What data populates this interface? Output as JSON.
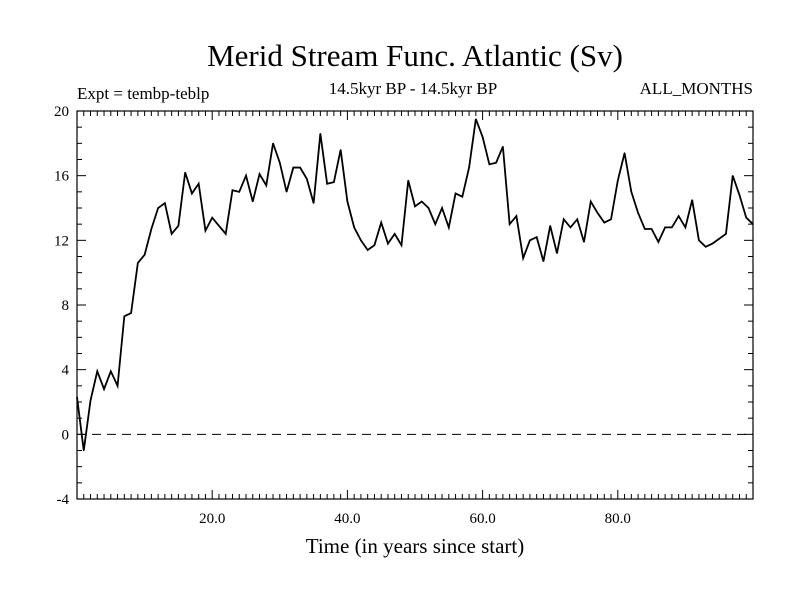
{
  "chart_data": {
    "type": "line",
    "title": "Merid Stream Func. Atlantic (Sv)",
    "subtitle_left": "Expt = tembp-teblp",
    "subtitle_center": "14.5kyr BP - 14.5kyr BP",
    "subtitle_right": "ALL_MONTHS",
    "xlabel": "Time (in years since start)",
    "ylabel": "",
    "xlim": [
      0,
      100
    ],
    "ylim": [
      -4,
      20
    ],
    "x_ticks": [
      20,
      40,
      60,
      80
    ],
    "x_tick_labels": [
      "20.0",
      "40.0",
      "60.0",
      "80.0"
    ],
    "y_ticks": [
      -4,
      0,
      4,
      8,
      12,
      16,
      20
    ],
    "y_tick_labels": [
      "-4",
      "0",
      "4",
      "8",
      "12",
      "16",
      "20"
    ],
    "zero_line": true,
    "grid": false,
    "series": [
      {
        "name": "Merid Stream Func. Atlantic",
        "color": "#000000",
        "x": [
          0,
          1,
          2,
          3,
          4,
          5,
          6,
          7,
          8,
          9,
          10,
          11,
          12,
          13,
          14,
          15,
          16,
          17,
          18,
          19,
          20,
          21,
          22,
          23,
          24,
          25,
          26,
          27,
          28,
          29,
          30,
          31,
          32,
          33,
          34,
          35,
          36,
          37,
          38,
          39,
          40,
          41,
          42,
          43,
          44,
          45,
          46,
          47,
          48,
          49,
          50,
          51,
          52,
          53,
          54,
          55,
          56,
          57,
          58,
          59,
          60,
          61,
          62,
          63,
          64,
          65,
          66,
          67,
          68,
          69,
          70,
          71,
          72,
          73,
          74,
          75,
          76,
          77,
          78,
          79,
          80,
          81,
          82,
          83,
          84,
          85,
          86,
          87,
          88,
          89,
          90,
          91,
          92,
          93,
          94,
          95,
          96,
          97,
          98,
          99,
          100
        ],
        "values": [
          2.3,
          -1.0,
          2.1,
          3.9,
          2.8,
          3.9,
          3.0,
          7.3,
          7.5,
          10.6,
          11.1,
          12.7,
          14.0,
          14.3,
          12.4,
          12.9,
          16.2,
          14.9,
          15.5,
          12.6,
          13.4,
          12.9,
          12.4,
          15.1,
          15.0,
          16.0,
          14.4,
          16.1,
          15.4,
          18.0,
          16.8,
          15.0,
          16.5,
          16.5,
          15.8,
          14.3,
          18.6,
          15.5,
          15.6,
          17.6,
          14.4,
          12.8,
          12.0,
          11.4,
          11.7,
          13.1,
          11.8,
          12.4,
          11.7,
          15.7,
          14.1,
          14.4,
          14.0,
          13.0,
          14.0,
          12.8,
          14.9,
          14.7,
          16.5,
          19.5,
          18.4,
          16.7,
          16.8,
          17.8,
          13.0,
          13.5,
          10.9,
          12.0,
          12.2,
          10.7,
          12.9,
          11.2,
          13.3,
          12.8,
          13.3,
          11.9,
          14.4,
          13.7,
          13.1,
          13.3,
          15.7,
          17.4,
          15.0,
          13.7,
          12.7,
          12.7,
          11.9,
          12.8,
          12.8,
          13.5,
          12.8,
          14.5,
          12.0,
          11.6,
          11.8,
          12.1,
          12.4,
          16.0,
          14.8,
          13.4,
          13.0
        ]
      }
    ]
  }
}
